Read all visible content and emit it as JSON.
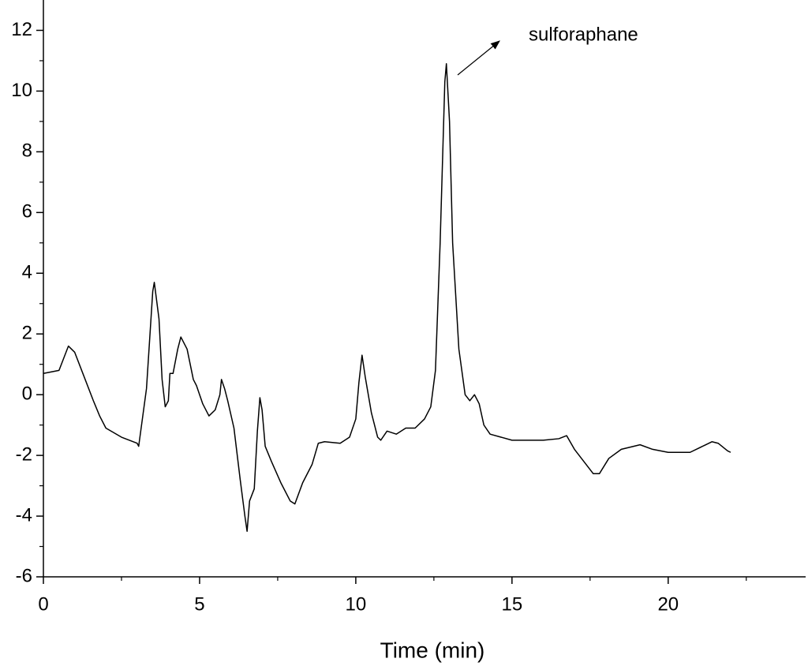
{
  "chart_data": {
    "type": "line",
    "xlabel": "Time (min)",
    "annotation": "sulforaphane",
    "xlim": [
      0,
      24.4
    ],
    "ylim": [
      -6,
      13
    ],
    "xticks": [
      0,
      5,
      10,
      15,
      20
    ],
    "yticks": [
      -6,
      -4,
      -2,
      0,
      2,
      4,
      6,
      8,
      10,
      12
    ],
    "xminorticks": [
      2.5,
      7.5,
      12.5,
      17.5,
      22.5
    ],
    "yminorticks": [
      -5,
      -3,
      -1,
      1,
      3,
      5,
      7,
      9,
      11
    ],
    "grid": false,
    "color": "#000000",
    "x": [
      0,
      0.5,
      0.8,
      1.0,
      1.3,
      1.6,
      1.8,
      2.0,
      2.5,
      3.0,
      3.05,
      3.3,
      3.5,
      3.55,
      3.7,
      3.8,
      3.9,
      4.0,
      4.05,
      4.15,
      4.3,
      4.4,
      4.6,
      4.8,
      4.9,
      5.1,
      5.3,
      5.5,
      5.65,
      5.7,
      5.8,
      5.9,
      6.1,
      6.3,
      6.45,
      6.52,
      6.6,
      6.75,
      6.85,
      6.93,
      7.0,
      7.1,
      7.3,
      7.6,
      7.9,
      8.05,
      8.3,
      8.6,
      8.8,
      9.0,
      9.5,
      9.8,
      10.0,
      10.1,
      10.2,
      10.3,
      10.5,
      10.7,
      10.8,
      11.0,
      11.3,
      11.6,
      11.9,
      12.2,
      12.4,
      12.55,
      12.7,
      12.85,
      12.9,
      13.0,
      13.1,
      13.3,
      13.5,
      13.65,
      13.8,
      13.95,
      14.1,
      14.3,
      15.0,
      16.0,
      16.5,
      16.75,
      17.0,
      17.3,
      17.6,
      17.8,
      18.1,
      18.5,
      19.1,
      19.5,
      20.0,
      20.7,
      21.2,
      21.4,
      21.6,
      21.9,
      22.0
    ],
    "values": [
      0.7,
      0.8,
      1.6,
      1.4,
      0.6,
      -0.2,
      -0.7,
      -1.1,
      -1.4,
      -1.6,
      -1.7,
      0.2,
      3.4,
      3.7,
      2.5,
      0.5,
      -0.4,
      -0.2,
      0.7,
      0.7,
      1.5,
      1.9,
      1.5,
      0.5,
      0.3,
      -0.3,
      -0.7,
      -0.5,
      0.0,
      0.5,
      0.2,
      -0.2,
      -1.1,
      -2.8,
      -4.0,
      -4.5,
      -3.5,
      -3.1,
      -1.2,
      -0.1,
      -0.5,
      -1.7,
      -2.2,
      -2.9,
      -3.5,
      -3.6,
      -2.9,
      -2.3,
      -1.6,
      -1.55,
      -1.6,
      -1.4,
      -0.8,
      0.4,
      1.3,
      0.6,
      -0.6,
      -1.4,
      -1.5,
      -1.2,
      -1.3,
      -1.1,
      -1.1,
      -0.8,
      -0.4,
      0.8,
      5.0,
      10.3,
      10.9,
      9.0,
      5.0,
      1.5,
      0.0,
      -0.2,
      0.0,
      -0.3,
      -1.0,
      -1.3,
      -1.5,
      -1.5,
      -1.45,
      -1.35,
      -1.8,
      -2.2,
      -2.6,
      -2.6,
      -2.1,
      -1.8,
      -1.65,
      -1.8,
      -1.9,
      -1.9,
      -1.65,
      -1.55,
      -1.6,
      -1.85,
      -1.9
    ]
  }
}
